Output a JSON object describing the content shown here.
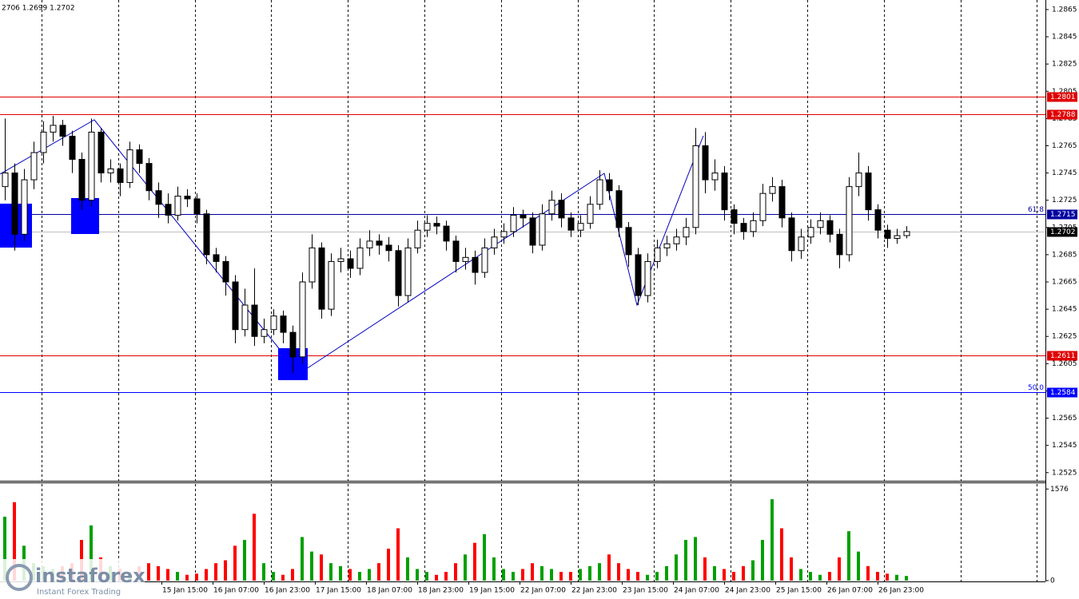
{
  "chart_data": {
    "type": "candlestick",
    "header": "2706 1.2699 1.2702",
    "watermark": {
      "brand": "instaforex",
      "tagline": "Instant Forex Trading"
    },
    "ylim": [
      1.2519,
      1.2872
    ],
    "yticks": [
      1.2865,
      1.2845,
      1.2825,
      1.2805,
      1.2785,
      1.2765,
      1.2745,
      1.2725,
      1.2705,
      1.2685,
      1.2665,
      1.2645,
      1.2625,
      1.2605,
      1.2585,
      1.2565,
      1.2545,
      1.2525
    ],
    "xlabels": [
      "15 Jan 15:00",
      "16 Jan 07:00",
      "16 Jan 23:00",
      "17 Jan 15:00",
      "18 Jan 07:00",
      "18 Jan 23:00",
      "19 Jan 15:00",
      "22 Jan 07:00",
      "22 Jan 23:00",
      "23 Jan 15:00",
      "24 Jan 07:00",
      "24 Jan 23:00",
      "25 Jan 15:00",
      "26 Jan 07:00",
      "26 Jan 23:00"
    ],
    "levels": [
      {
        "value": 1.2801,
        "color": "#e00000"
      },
      {
        "value": 1.2788,
        "color": "#e00000"
      },
      {
        "value": 1.2715,
        "color": "#0000a0",
        "label": "61.8"
      },
      {
        "value": 1.2611,
        "color": "#e00000"
      },
      {
        "value": 1.2584,
        "color": "#0000ff",
        "label": "50.0"
      }
    ],
    "current": {
      "value": 1.2702,
      "color": "#000000"
    },
    "ohlc": [
      [
        1.2735,
        1.2785,
        1.2725,
        1.2745
      ],
      [
        1.2745,
        1.2752,
        1.2688,
        1.27
      ],
      [
        1.27,
        1.2748,
        1.2695,
        1.274
      ],
      [
        1.274,
        1.2768,
        1.2733,
        1.276
      ],
      [
        1.276,
        1.2783,
        1.2752,
        1.2775
      ],
      [
        1.2775,
        1.2787,
        1.2768,
        1.278
      ],
      [
        1.278,
        1.2784,
        1.2765,
        1.2772
      ],
      [
        1.2772,
        1.2776,
        1.2745,
        1.2755
      ],
      [
        1.2755,
        1.276,
        1.2718,
        1.2725
      ],
      [
        1.2725,
        1.2785,
        1.272,
        1.2775
      ],
      [
        1.2775,
        1.2778,
        1.2738,
        1.2745
      ],
      [
        1.2745,
        1.2755,
        1.2738,
        1.2748
      ],
      [
        1.2748,
        1.2752,
        1.2728,
        1.2738
      ],
      [
        1.2738,
        1.2768,
        1.2734,
        1.2762
      ],
      [
        1.2762,
        1.2766,
        1.2745,
        1.2752
      ],
      [
        1.2752,
        1.2756,
        1.2725,
        1.2732
      ],
      [
        1.2732,
        1.2738,
        1.2712,
        1.2722
      ],
      [
        1.2722,
        1.273,
        1.2708,
        1.2714
      ],
      [
        1.2714,
        1.2735,
        1.271,
        1.2728
      ],
      [
        1.2728,
        1.2733,
        1.272,
        1.2726
      ],
      [
        1.2726,
        1.273,
        1.2708,
        1.2715
      ],
      [
        1.2715,
        1.2718,
        1.2678,
        1.2685
      ],
      [
        1.2685,
        1.269,
        1.2672,
        1.268
      ],
      [
        1.268,
        1.2684,
        1.2655,
        1.2665
      ],
      [
        1.2665,
        1.267,
        1.262,
        1.263
      ],
      [
        1.263,
        1.266,
        1.2625,
        1.2648
      ],
      [
        1.2648,
        1.2675,
        1.2618,
        1.2625
      ],
      [
        1.2625,
        1.2638,
        1.262,
        1.263
      ],
      [
        1.263,
        1.2645,
        1.2626,
        1.264
      ],
      [
        1.264,
        1.2644,
        1.262,
        1.2628
      ],
      [
        1.2628,
        1.2633,
        1.2598,
        1.261
      ],
      [
        1.261,
        1.2672,
        1.2605,
        1.2665
      ],
      [
        1.2665,
        1.27,
        1.266,
        1.269
      ],
      [
        1.269,
        1.2694,
        1.2638,
        1.2645
      ],
      [
        1.2645,
        1.2686,
        1.264,
        1.268
      ],
      [
        1.268,
        1.269,
        1.2672,
        1.2682
      ],
      [
        1.2682,
        1.2688,
        1.2668,
        1.2675
      ],
      [
        1.2675,
        1.2697,
        1.267,
        1.269
      ],
      [
        1.269,
        1.2703,
        1.2684,
        1.2695
      ],
      [
        1.2695,
        1.27,
        1.2685,
        1.2692
      ],
      [
        1.2692,
        1.2698,
        1.268,
        1.2688
      ],
      [
        1.2688,
        1.2692,
        1.2647,
        1.2655
      ],
      [
        1.2655,
        1.2697,
        1.265,
        1.269
      ],
      [
        1.269,
        1.271,
        1.2686,
        1.2703
      ],
      [
        1.2703,
        1.2714,
        1.2698,
        1.2708
      ],
      [
        1.2708,
        1.2713,
        1.27,
        1.2706
      ],
      [
        1.2706,
        1.271,
        1.2688,
        1.2695
      ],
      [
        1.2695,
        1.2699,
        1.2672,
        1.268
      ],
      [
        1.268,
        1.269,
        1.2674,
        1.2683
      ],
      [
        1.2683,
        1.2688,
        1.2663,
        1.2672
      ],
      [
        1.2672,
        1.2697,
        1.2668,
        1.269
      ],
      [
        1.269,
        1.2704,
        1.2685,
        1.2698
      ],
      [
        1.2698,
        1.2708,
        1.2693,
        1.2702
      ],
      [
        1.2702,
        1.272,
        1.2698,
        1.2714
      ],
      [
        1.2714,
        1.2718,
        1.2705,
        1.2712
      ],
      [
        1.2712,
        1.2716,
        1.2686,
        1.2692
      ],
      [
        1.2692,
        1.2722,
        1.2688,
        1.2715
      ],
      [
        1.2715,
        1.2732,
        1.271,
        1.2725
      ],
      [
        1.2725,
        1.273,
        1.2705,
        1.2712
      ],
      [
        1.2712,
        1.2716,
        1.2698,
        1.2703
      ],
      [
        1.2703,
        1.2714,
        1.2698,
        1.2708
      ],
      [
        1.2708,
        1.2728,
        1.2704,
        1.2722
      ],
      [
        1.2722,
        1.2747,
        1.2718,
        1.274
      ],
      [
        1.274,
        1.2745,
        1.2725,
        1.2732
      ],
      [
        1.2732,
        1.2736,
        1.2698,
        1.2705
      ],
      [
        1.2705,
        1.2709,
        1.2676,
        1.2685
      ],
      [
        1.2685,
        1.269,
        1.2648,
        1.2655
      ],
      [
        1.2655,
        1.2686,
        1.265,
        1.268
      ],
      [
        1.268,
        1.2696,
        1.2675,
        1.269
      ],
      [
        1.269,
        1.2699,
        1.2684,
        1.2693
      ],
      [
        1.2693,
        1.2704,
        1.2688,
        1.2698
      ],
      [
        1.2698,
        1.2712,
        1.2692,
        1.2705
      ],
      [
        1.2705,
        1.2778,
        1.27,
        1.2765
      ],
      [
        1.2765,
        1.2775,
        1.273,
        1.274
      ],
      [
        1.274,
        1.2755,
        1.2732,
        1.2745
      ],
      [
        1.2745,
        1.275,
        1.271,
        1.2718
      ],
      [
        1.2718,
        1.2722,
        1.27,
        1.2708
      ],
      [
        1.2708,
        1.2712,
        1.2696,
        1.2702
      ],
      [
        1.2702,
        1.2716,
        1.2698,
        1.271
      ],
      [
        1.271,
        1.2737,
        1.2706,
        1.273
      ],
      [
        1.273,
        1.2742,
        1.2724,
        1.2735
      ],
      [
        1.2735,
        1.274,
        1.2705,
        1.2712
      ],
      [
        1.2712,
        1.2716,
        1.268,
        1.2688
      ],
      [
        1.2688,
        1.2704,
        1.2682,
        1.2698
      ],
      [
        1.2698,
        1.2711,
        1.2693,
        1.2705
      ],
      [
        1.2705,
        1.2716,
        1.27,
        1.271
      ],
      [
        1.271,
        1.2714,
        1.2694,
        1.27
      ],
      [
        1.27,
        1.2704,
        1.2675,
        1.2685
      ],
      [
        1.2685,
        1.2742,
        1.268,
        1.2735
      ],
      [
        1.2735,
        1.276,
        1.2728,
        1.2745
      ],
      [
        1.2745,
        1.275,
        1.271,
        1.2718
      ],
      [
        1.2718,
        1.2722,
        1.2697,
        1.2703
      ],
      [
        1.2703,
        1.2707,
        1.269,
        1.2697
      ],
      [
        1.2697,
        1.2704,
        1.2693,
        1.2699
      ],
      [
        1.2699,
        1.2706,
        1.2697,
        1.2702
      ]
    ],
    "volume": [
      1100,
      1350,
      600,
      300,
      250,
      200,
      250,
      300,
      700,
      950,
      400,
      250,
      200,
      150,
      250,
      300,
      250,
      200,
      150,
      100,
      120,
      200,
      300,
      350,
      600,
      700,
      1150,
      300,
      150,
      100,
      200,
      750,
      500,
      450,
      300,
      250,
      200,
      150,
      200,
      300,
      550,
      900,
      400,
      200,
      150,
      100,
      150,
      300,
      450,
      650,
      800,
      400,
      200,
      150,
      200,
      300,
      250,
      200,
      150,
      150,
      200,
      250,
      300,
      450,
      300,
      200,
      150,
      100,
      150,
      250,
      450,
      700,
      750,
      400,
      250,
      200,
      150,
      250,
      350,
      700,
      1400,
      900,
      400,
      200,
      150,
      100,
      150,
      400,
      850,
      500,
      250,
      150,
      120,
      100,
      80
    ],
    "volume_lim": [
      0,
      1676
    ],
    "volume_ticks": [
      0,
      1576
    ],
    "up_color": "#00a000",
    "down_color": "#ff0000"
  }
}
